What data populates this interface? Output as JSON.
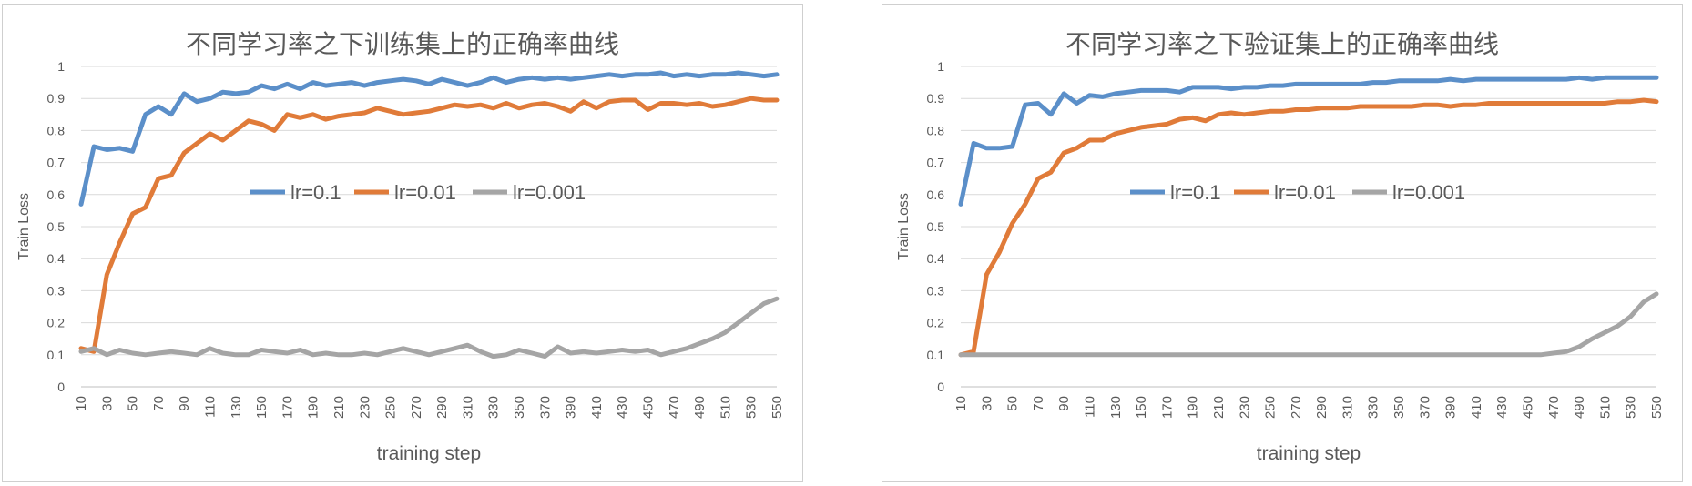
{
  "chart_data": [
    {
      "type": "line",
      "title": "不同学习率之下训练集上的正确率曲线",
      "xlabel": "training   step",
      "ylabel": "Train  Loss",
      "ylim": [
        0,
        1
      ],
      "yticks": [
        "0",
        "0.1",
        "0.2",
        "0.3",
        "0.4",
        "0.5",
        "0.6",
        "0.7",
        "0.8",
        "0.9",
        "1"
      ],
      "x": [
        10,
        20,
        30,
        40,
        50,
        60,
        70,
        80,
        90,
        100,
        110,
        120,
        130,
        140,
        150,
        160,
        170,
        180,
        190,
        200,
        210,
        220,
        230,
        240,
        250,
        260,
        270,
        280,
        290,
        300,
        310,
        320,
        330,
        340,
        350,
        360,
        370,
        380,
        390,
        400,
        410,
        420,
        430,
        440,
        450,
        460,
        470,
        480,
        490,
        500,
        510,
        520,
        530,
        540,
        550
      ],
      "xtick_labels": [
        "10",
        "30",
        "50",
        "70",
        "90",
        "110",
        "130",
        "150",
        "170",
        "190",
        "210",
        "230",
        "250",
        "270",
        "290",
        "310",
        "330",
        "350",
        "370",
        "390",
        "410",
        "430",
        "450",
        "470",
        "490",
        "510",
        "530",
        "550"
      ],
      "legend_position": "middle-right",
      "series": [
        {
          "name": "lr=0.1",
          "color": "#5b8fc9",
          "values": [
            0.57,
            0.75,
            0.74,
            0.745,
            0.735,
            0.85,
            0.875,
            0.85,
            0.915,
            0.89,
            0.9,
            0.92,
            0.915,
            0.92,
            0.94,
            0.93,
            0.945,
            0.93,
            0.95,
            0.94,
            0.945,
            0.95,
            0.94,
            0.95,
            0.955,
            0.96,
            0.955,
            0.945,
            0.96,
            0.95,
            0.94,
            0.95,
            0.965,
            0.95,
            0.96,
            0.965,
            0.96,
            0.965,
            0.96,
            0.965,
            0.97,
            0.975,
            0.97,
            0.975,
            0.975,
            0.98,
            0.97,
            0.975,
            0.97,
            0.975,
            0.975,
            0.98,
            0.975,
            0.97,
            0.975
          ]
        },
        {
          "name": "lr=0.01",
          "color": "#e07b39",
          "values": [
            0.12,
            0.11,
            0.35,
            0.45,
            0.54,
            0.56,
            0.65,
            0.66,
            0.73,
            0.76,
            0.79,
            0.77,
            0.8,
            0.83,
            0.82,
            0.8,
            0.85,
            0.84,
            0.85,
            0.835,
            0.845,
            0.85,
            0.855,
            0.87,
            0.86,
            0.85,
            0.855,
            0.86,
            0.87,
            0.88,
            0.875,
            0.88,
            0.87,
            0.885,
            0.87,
            0.88,
            0.885,
            0.875,
            0.86,
            0.89,
            0.87,
            0.89,
            0.895,
            0.895,
            0.865,
            0.885,
            0.885,
            0.88,
            0.885,
            0.875,
            0.88,
            0.89,
            0.9,
            0.895,
            0.895
          ]
        },
        {
          "name": "lr=0.001",
          "color": "#a5a5a5",
          "values": [
            0.11,
            0.12,
            0.1,
            0.115,
            0.105,
            0.1,
            0.105,
            0.11,
            0.105,
            0.1,
            0.12,
            0.105,
            0.1,
            0.1,
            0.115,
            0.11,
            0.105,
            0.115,
            0.1,
            0.105,
            0.1,
            0.1,
            0.105,
            0.1,
            0.11,
            0.12,
            0.11,
            0.1,
            0.11,
            0.12,
            0.13,
            0.11,
            0.095,
            0.1,
            0.115,
            0.105,
            0.095,
            0.125,
            0.105,
            0.11,
            0.105,
            0.11,
            0.115,
            0.11,
            0.115,
            0.1,
            0.11,
            0.12,
            0.135,
            0.15,
            0.17,
            0.2,
            0.23,
            0.26,
            0.275
          ]
        }
      ]
    },
    {
      "type": "line",
      "title": "不同学习率之下验证集上的正确率曲线",
      "xlabel": "training   step",
      "ylabel": "Train  Loss",
      "ylim": [
        0,
        1
      ],
      "yticks": [
        "0",
        "0.1",
        "0.2",
        "0.3",
        "0.4",
        "0.5",
        "0.6",
        "0.7",
        "0.8",
        "0.9",
        "1"
      ],
      "x": [
        10,
        20,
        30,
        40,
        50,
        60,
        70,
        80,
        90,
        100,
        110,
        120,
        130,
        140,
        150,
        160,
        170,
        180,
        190,
        200,
        210,
        220,
        230,
        240,
        250,
        260,
        270,
        280,
        290,
        300,
        310,
        320,
        330,
        340,
        350,
        360,
        370,
        380,
        390,
        400,
        410,
        420,
        430,
        440,
        450,
        460,
        470,
        480,
        490,
        500,
        510,
        520,
        530,
        540,
        550
      ],
      "xtick_labels": [
        "10",
        "30",
        "50",
        "70",
        "90",
        "110",
        "130",
        "150",
        "170",
        "190",
        "210",
        "230",
        "250",
        "270",
        "290",
        "310",
        "330",
        "350",
        "370",
        "390",
        "410",
        "430",
        "450",
        "470",
        "490",
        "510",
        "530",
        "550"
      ],
      "legend_position": "middle-right",
      "series": [
        {
          "name": "lr=0.1",
          "color": "#5b8fc9",
          "values": [
            0.57,
            0.76,
            0.745,
            0.745,
            0.75,
            0.88,
            0.885,
            0.85,
            0.915,
            0.885,
            0.91,
            0.905,
            0.915,
            0.92,
            0.925,
            0.925,
            0.925,
            0.92,
            0.935,
            0.935,
            0.935,
            0.93,
            0.935,
            0.935,
            0.94,
            0.94,
            0.945,
            0.945,
            0.945,
            0.945,
            0.945,
            0.945,
            0.95,
            0.95,
            0.955,
            0.955,
            0.955,
            0.955,
            0.96,
            0.955,
            0.96,
            0.96,
            0.96,
            0.96,
            0.96,
            0.96,
            0.96,
            0.96,
            0.965,
            0.96,
            0.965,
            0.965,
            0.965,
            0.965,
            0.965
          ]
        },
        {
          "name": "lr=0.01",
          "color": "#e07b39",
          "values": [
            0.1,
            0.11,
            0.35,
            0.42,
            0.51,
            0.57,
            0.65,
            0.67,
            0.73,
            0.745,
            0.77,
            0.77,
            0.79,
            0.8,
            0.81,
            0.815,
            0.82,
            0.835,
            0.84,
            0.83,
            0.85,
            0.855,
            0.85,
            0.855,
            0.86,
            0.86,
            0.865,
            0.865,
            0.87,
            0.87,
            0.87,
            0.875,
            0.875,
            0.875,
            0.875,
            0.875,
            0.88,
            0.88,
            0.875,
            0.88,
            0.88,
            0.885,
            0.885,
            0.885,
            0.885,
            0.885,
            0.885,
            0.885,
            0.885,
            0.885,
            0.885,
            0.89,
            0.89,
            0.895,
            0.89
          ]
        },
        {
          "name": "lr=0.001",
          "color": "#a5a5a5",
          "values": [
            0.1,
            0.1,
            0.1,
            0.1,
            0.1,
            0.1,
            0.1,
            0.1,
            0.1,
            0.1,
            0.1,
            0.1,
            0.1,
            0.1,
            0.1,
            0.1,
            0.1,
            0.1,
            0.1,
            0.1,
            0.1,
            0.1,
            0.1,
            0.1,
            0.1,
            0.1,
            0.1,
            0.1,
            0.1,
            0.1,
            0.1,
            0.1,
            0.1,
            0.1,
            0.1,
            0.1,
            0.1,
            0.1,
            0.1,
            0.1,
            0.1,
            0.1,
            0.1,
            0.1,
            0.1,
            0.1,
            0.105,
            0.11,
            0.125,
            0.15,
            0.17,
            0.19,
            0.22,
            0.265,
            0.29
          ]
        }
      ]
    }
  ]
}
